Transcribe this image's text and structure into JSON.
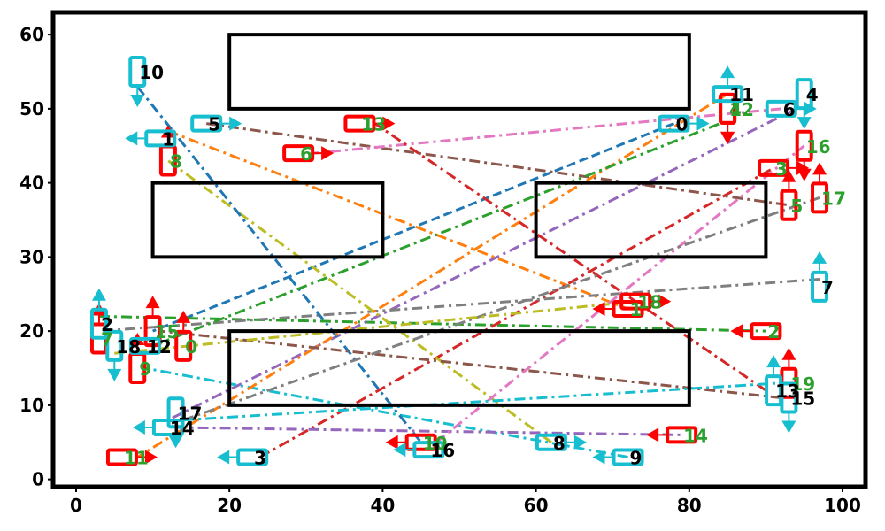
{
  "chart_data": {
    "type": "scatter",
    "title": "",
    "xlabel": "",
    "ylabel": "",
    "xlim": [
      -3,
      103
    ],
    "ylim": [
      -1,
      63
    ],
    "grid": false,
    "legend": "none",
    "x_ticks": [
      "0",
      "20",
      "40",
      "60",
      "80",
      "100"
    ],
    "x_tick_values": [
      0,
      20,
      40,
      60,
      80,
      100
    ],
    "y_ticks": [
      "0",
      "10",
      "20",
      "30",
      "40",
      "50",
      "60"
    ],
    "y_tick_values": [
      0,
      10,
      20,
      30,
      40,
      50,
      60
    ],
    "obstacles": [
      {
        "x0": 20,
        "y0": 50,
        "x1": 80,
        "y1": 60
      },
      {
        "x0": 10,
        "y0": 30,
        "x1": 40,
        "y1": 40
      },
      {
        "x0": 60,
        "y0": 30,
        "x1": 90,
        "y1": 40
      },
      {
        "x0": 20,
        "y0": 10,
        "x1": 80,
        "y1": 20
      }
    ],
    "cyan_points": [
      {
        "label": "0",
        "x": 78,
        "y": 48,
        "orient": "h",
        "arrow": "right"
      },
      {
        "label": "1",
        "x": 11,
        "y": 46,
        "orient": "h",
        "arrow": "left"
      },
      {
        "label": "2",
        "x": 3,
        "y": 21,
        "orient": "v",
        "arrow": "up"
      },
      {
        "label": "3",
        "x": 23,
        "y": 3,
        "orient": "h",
        "arrow": "left"
      },
      {
        "label": "4",
        "x": 95,
        "y": 52,
        "orient": "v",
        "arrow": "down"
      },
      {
        "label": "5",
        "x": 17,
        "y": 48,
        "orient": "h",
        "arrow": "right"
      },
      {
        "label": "6",
        "x": 92,
        "y": 50,
        "orient": "h",
        "arrow": "right"
      },
      {
        "label": "7",
        "x": 97,
        "y": 26,
        "orient": "v",
        "arrow": "up"
      },
      {
        "label": "8",
        "x": 62,
        "y": 5,
        "orient": "h",
        "arrow": "right"
      },
      {
        "label": "9",
        "x": 72,
        "y": 3,
        "orient": "h",
        "arrow": "left"
      },
      {
        "label": "10",
        "x": 8,
        "y": 55,
        "orient": "v",
        "arrow": "down"
      },
      {
        "label": "11",
        "x": 85,
        "y": 52,
        "orient": "h",
        "arrow": "up"
      },
      {
        "label": "12",
        "x": 9,
        "y": 18,
        "orient": "h",
        "arrow": "none"
      },
      {
        "label": "13",
        "x": 91,
        "y": 12,
        "orient": "v",
        "arrow": "up"
      },
      {
        "label": "14",
        "x": 12,
        "y": 7,
        "orient": "h",
        "arrow": "left"
      },
      {
        "label": "15",
        "x": 93,
        "y": 11,
        "orient": "v",
        "arrow": "down"
      },
      {
        "label": "16",
        "x": 46,
        "y": 4,
        "orient": "h",
        "arrow": "left"
      },
      {
        "label": "17",
        "x": 13,
        "y": 9,
        "orient": "v",
        "arrow": "down"
      },
      {
        "label": "18",
        "x": 5,
        "y": 18,
        "orient": "v",
        "arrow": "down"
      }
    ],
    "red_points": [
      {
        "label": "0",
        "x": 14,
        "y": 18,
        "orient": "v",
        "arrow": "up"
      },
      {
        "label": "1",
        "x": 72,
        "y": 23,
        "orient": "h",
        "arrow": "left"
      },
      {
        "label": "2",
        "x": 90,
        "y": 20,
        "orient": "h",
        "arrow": "left"
      },
      {
        "label": "3",
        "x": 91,
        "y": 42,
        "orient": "h",
        "arrow": "right"
      },
      {
        "label": "4",
        "x": 85,
        "y": 50,
        "orient": "v",
        "arrow": "down"
      },
      {
        "label": "5",
        "x": 93,
        "y": 37,
        "orient": "v",
        "arrow": "up"
      },
      {
        "label": "6",
        "x": 29,
        "y": 44,
        "orient": "h",
        "arrow": "right"
      },
      {
        "label": "7",
        "x": 3,
        "y": 19,
        "orient": "v",
        "arrow": "up"
      },
      {
        "label": "8",
        "x": 12,
        "y": 43,
        "orient": "v",
        "arrow": "up"
      },
      {
        "label": "9",
        "x": 8,
        "y": 15,
        "orient": "v",
        "arrow": "up"
      },
      {
        "label": "10",
        "x": 45,
        "y": 5,
        "orient": "h",
        "arrow": "left"
      },
      {
        "label": "11",
        "x": 6,
        "y": 3,
        "orient": "h",
        "arrow": "right"
      },
      {
        "label": "12",
        "x": 85,
        "y": 50,
        "orient": "v",
        "arrow": "down"
      },
      {
        "label": "13",
        "x": 37,
        "y": 48,
        "orient": "h",
        "arrow": "right"
      },
      {
        "label": "14",
        "x": 79,
        "y": 6,
        "orient": "h",
        "arrow": "left"
      },
      {
        "label": "15",
        "x": 10,
        "y": 20,
        "orient": "v",
        "arrow": "up"
      },
      {
        "label": "16",
        "x": 95,
        "y": 45,
        "orient": "v",
        "arrow": "down"
      },
      {
        "label": "17",
        "x": 97,
        "y": 38,
        "orient": "v",
        "arrow": "up"
      },
      {
        "label": "18",
        "x": 73,
        "y": 24,
        "orient": "h",
        "arrow": "right"
      },
      {
        "label": "19",
        "x": 93,
        "y": 13,
        "orient": "v",
        "arrow": "up"
      }
    ],
    "red_label_color": "#2ca02c",
    "cyan_label_color": "#000000",
    "lines": [
      {
        "from": [
          78,
          48
        ],
        "to": [
          10,
          20
        ],
        "color": "#1f77b4",
        "style": "dash"
      },
      {
        "from": [
          12,
          47
        ],
        "to": [
          72,
          23
        ],
        "color": "#ff7f0e",
        "style": "dashdot"
      },
      {
        "from": [
          3,
          22
        ],
        "to": [
          90,
          20
        ],
        "color": "#2ca02c",
        "style": "dashdot"
      },
      {
        "from": [
          24,
          3
        ],
        "to": [
          91,
          42
        ],
        "color": "#d62728",
        "style": "dashdot"
      },
      {
        "from": [
          94,
          50
        ],
        "to": [
          12,
          8
        ],
        "color": "#9467bd",
        "style": "dashdot"
      },
      {
        "from": [
          17,
          48
        ],
        "to": [
          93,
          37
        ],
        "color": "#8c564b",
        "style": "dashdot"
      },
      {
        "from": [
          92,
          50
        ],
        "to": [
          31,
          44
        ],
        "color": "#e377c2",
        "style": "dashdot"
      },
      {
        "from": [
          97,
          27
        ],
        "to": [
          3,
          20
        ],
        "color": "#7f7f7f",
        "style": "dashdot"
      },
      {
        "from": [
          62,
          5
        ],
        "to": [
          12,
          43
        ],
        "color": "#bcbd22",
        "style": "dashdot"
      },
      {
        "from": [
          72,
          3
        ],
        "to": [
          9,
          15
        ],
        "color": "#17becf",
        "style": "dashdot"
      },
      {
        "from": [
          8,
          53
        ],
        "to": [
          45,
          5
        ],
        "color": "#1f77b4",
        "style": "dashdot"
      },
      {
        "from": [
          85,
          52
        ],
        "to": [
          8,
          3
        ],
        "color": "#ff7f0e",
        "style": "dashdot"
      },
      {
        "from": [
          10,
          18
        ],
        "to": [
          84,
          48
        ],
        "color": "#2ca02c",
        "style": "dashdot"
      },
      {
        "from": [
          90,
          12
        ],
        "to": [
          39,
          48
        ],
        "color": "#d62728",
        "style": "dashdot"
      },
      {
        "from": [
          13,
          7
        ],
        "to": [
          79,
          6
        ],
        "color": "#9467bd",
        "style": "dashdot"
      },
      {
        "from": [
          92,
          11
        ],
        "to": [
          11,
          20
        ],
        "color": "#8c564b",
        "style": "dashdot"
      },
      {
        "from": [
          47,
          5
        ],
        "to": [
          95,
          45
        ],
        "color": "#e377c2",
        "style": "dashdot"
      },
      {
        "from": [
          14,
          8
        ],
        "to": [
          97,
          38
        ],
        "color": "#7f7f7f",
        "style": "dashdot"
      },
      {
        "from": [
          5,
          17
        ],
        "to": [
          73,
          24
        ],
        "color": "#bcbd22",
        "style": "dashdot"
      },
      {
        "from": [
          14,
          8
        ],
        "to": [
          92,
          13
        ],
        "color": "#17becf",
        "style": "dashdot"
      }
    ]
  }
}
